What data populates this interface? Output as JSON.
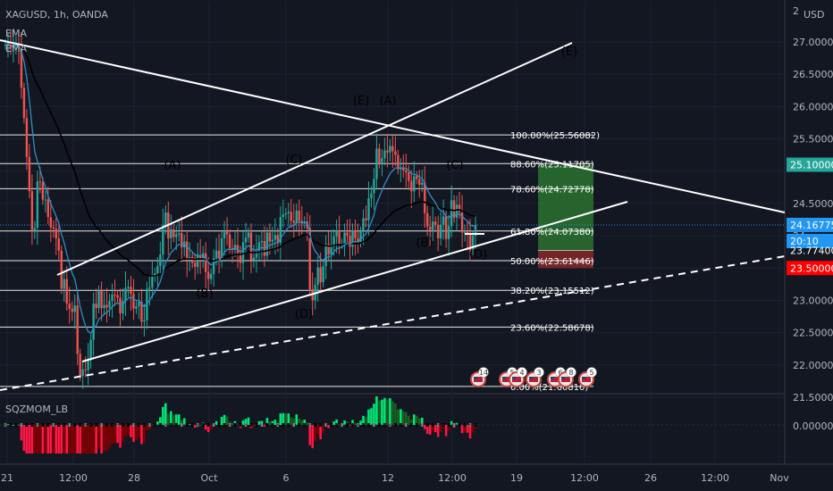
{
  "header": {
    "symbol": "XAGUSD, 1h, OANDA",
    "indicators": [
      "EMA",
      "EMA"
    ],
    "currency": "USD"
  },
  "oscillator": {
    "name": "SQZMOM_LB",
    "zero_label": "0.00000"
  },
  "colors": {
    "background": "#131722",
    "grid": "#1e2230",
    "text": "#b2b5be",
    "trendline": "#ffffff",
    "ema_fast": "#2a8fc5",
    "ema_slow": "#000000",
    "candle_up": "#26a69a",
    "candle_down": "#ef5350",
    "target_zone": "#2e7d32",
    "stop_zone": "#8b2a2a",
    "price_badge": "#2196f3",
    "target_badge": "#26a69a",
    "stop_badge": "#ff0000",
    "mom_up_strong": "#00e676",
    "mom_up_weak": "#1b5e20",
    "mom_down_strong": "#ff1744",
    "mom_down_weak": "#7f0000"
  },
  "chart_data": {
    "type": "candlestick",
    "symbol": "XAGUSD",
    "timeframe": "1h",
    "ylim": [
      21.35,
      27.25
    ],
    "y_ticks": [
      27.0,
      26.5,
      26.0,
      25.5,
      25.0,
      24.5,
      24.0,
      23.5,
      23.0,
      22.5,
      22.0,
      21.5
    ],
    "y_tick_labels": [
      "27.00000",
      "26.50000",
      "26.00000",
      "25.50000",
      "",
      "24.50000",
      "24",
      "",
      "23.00000",
      "22.50000",
      "22.00000",
      "21.50000"
    ],
    "x_tick_labels": [
      "21",
      "12:00",
      "28",
      "Oct",
      "6",
      "12",
      "12:00",
      "19",
      "12:00",
      "26",
      "12:00",
      "Nov"
    ],
    "price_labels": [
      {
        "label": "25.10000",
        "value": 25.1,
        "kind": "target"
      },
      {
        "label": "24.16775",
        "value": 24.17,
        "kind": "last"
      },
      {
        "label": "20:10",
        "value": 24.0,
        "kind": "countdown"
      },
      {
        "label": "23.77400",
        "value": 23.77,
        "kind": "entry"
      },
      {
        "label": "23.50000",
        "value": 23.5,
        "kind": "stop"
      }
    ],
    "fib_levels": [
      {
        "label": "100.00%(25.56082)",
        "value": 25.56082
      },
      {
        "label": "88.60%(25.11705)",
        "value": 25.11705
      },
      {
        "label": "78.60%(24.72778)",
        "value": 24.72778
      },
      {
        "label": "61.80%(24.07380)",
        "value": 24.0738
      },
      {
        "label": "50.00%(23.61446)",
        "value": 23.61446
      },
      {
        "label": "38.20%(23.15512)",
        "value": 23.15512
      },
      {
        "label": "23.60%(22.58678)",
        "value": 22.58678
      },
      {
        "label": "0.00%(21.66810)",
        "value": 21.6681
      }
    ],
    "wave_labels": [
      {
        "text": "(A)",
        "t": 64,
        "price": 24.95
      },
      {
        "text": "(B)",
        "t": 76,
        "price": 23.28
      },
      {
        "text": "(C)",
        "t": 112,
        "price": 25.0
      },
      {
        "text": "(D)",
        "t": 112,
        "price": 22.48
      },
      {
        "text": "(E)",
        "t": 138,
        "price": 25.98
      },
      {
        "text": "(A)",
        "t": 148,
        "price": 25.98
      },
      {
        "text": "(B)",
        "t": 162,
        "price": 23.84
      },
      {
        "text": "(C)",
        "t": 174,
        "price": 24.95
      },
      {
        "text": "(D)",
        "t": 183,
        "price": 23.6
      },
      {
        "text": "(E)",
        "t": 218,
        "price": 26.95
      }
    ],
    "event_badges": [
      "14",
      "5",
      "4",
      "3",
      "6",
      "8",
      "5"
    ],
    "candles_close": [
      26.96,
      26.99,
      26.91,
      26.95,
      26.98,
      26.92,
      26.29,
      25.82,
      25.22,
      24.69,
      24.09,
      24.12,
      24.84,
      24.83,
      24.56,
      24.56,
      24.29,
      24.13,
      24.11,
      23.96,
      23.77,
      23.18,
      23.33,
      22.95,
      22.87,
      22.82,
      22.92,
      22.17,
      21.83,
      21.93,
      21.92,
      22.08,
      22.39,
      22.95,
      22.88,
      23.15,
      22.88,
      22.93,
      22.89,
      22.99,
      23.09,
      23.08,
      23.04,
      22.8,
      22.99,
      23.19,
      23.21,
      23.1,
      22.87,
      22.91,
      22.98,
      22.67,
      22.69,
      23.18,
      23.2,
      23.37,
      23.42,
      23.53,
      23.71,
      24.16,
      24.36,
      23.96,
      24.1,
      23.98,
      24.02,
      24.04,
      23.82,
      23.91,
      23.62,
      23.67,
      23.58,
      23.52,
      23.69,
      23.64,
      23.73,
      23.44,
      23.33,
      23.41,
      23.65,
      23.77,
      23.65,
      23.96,
      24.06,
      24.02,
      23.81,
      23.78,
      23.86,
      23.73,
      23.58,
      23.9,
      23.97,
      24.05,
      23.62,
      23.66,
      23.76,
      23.9,
      23.92,
      23.69,
      24.05,
      23.91,
      23.94,
      24.01,
      23.89,
      24.29,
      24.33,
      24.35,
      24.37,
      24.23,
      24.2,
      24.39,
      24.23,
      24.19,
      24.22,
      24.12,
      23.17,
      23.0,
      23.24,
      23.51,
      23.28,
      23.53,
      23.87,
      23.71,
      23.83,
      23.99,
      24.08,
      23.88,
      23.88,
      24.05,
      24.0,
      23.83,
      24.08,
      23.96,
      23.9,
      24.06,
      24.27,
      24.24,
      24.58,
      24.66,
      24.88,
      25.35,
      25.12,
      25.2,
      25.32,
      25.29,
      25.39,
      25.31,
      25.25,
      25.03,
      25.06,
      25.01,
      24.98,
      24.85,
      24.69,
      24.92,
      24.88,
      24.79,
      24.82,
      24.35,
      24.14,
      24.09,
      24.22,
      24.17,
      23.96,
      24.17,
      24.3,
      23.95,
      24.15,
      24.55,
      24.28,
      24.48,
      24.37,
      24.05,
      24.06,
      24.03,
      23.78,
      24.0,
      24.17
    ],
    "ema_fast": [
      26.95,
      26.96,
      26.95,
      26.95,
      26.95,
      26.95,
      26.86,
      26.7,
      26.45,
      26.1,
      25.68,
      25.3,
      25.15,
      25.02,
      24.87,
      24.76,
      24.62,
      24.5,
      24.4,
      24.3,
      24.2,
      24.02,
      23.89,
      23.72,
      23.57,
      23.42,
      23.33,
      23.12,
      22.9,
      22.74,
      22.6,
      22.52,
      22.49,
      22.57,
      22.61,
      22.71,
      22.74,
      22.79,
      22.81,
      22.85,
      22.9,
      22.94,
      22.96,
      22.93,
      22.94,
      22.99,
      23.03,
      23.05,
      23.02,
      23.0,
      23.0,
      22.95,
      22.9,
      22.95,
      23.0,
      23.07,
      23.13,
      23.2,
      23.29,
      23.43,
      23.59,
      23.66,
      23.74,
      23.78,
      23.83,
      23.87,
      23.86,
      23.87,
      23.83,
      23.79,
      23.75,
      23.7,
      23.7,
      23.69,
      23.69,
      23.65,
      23.59,
      23.55,
      23.57,
      23.6,
      23.61,
      23.67,
      23.74,
      23.79,
      23.79,
      23.79,
      23.8,
      23.79,
      23.75,
      23.78,
      23.81,
      23.85,
      23.81,
      23.78,
      23.78,
      23.8,
      23.82,
      23.8,
      23.84,
      23.85,
      23.87,
      23.89,
      23.89,
      23.96,
      24.02,
      24.08,
      24.13,
      24.15,
      24.16,
      24.2,
      24.21,
      24.21,
      24.21,
      24.2,
      24.03,
      23.85,
      23.76,
      23.71,
      23.64,
      23.62,
      23.66,
      23.67,
      23.69,
      23.75,
      23.8,
      23.81,
      23.82,
      23.86,
      23.88,
      23.87,
      23.9,
      23.91,
      23.91,
      23.94,
      23.99,
      24.03,
      24.12,
      24.21,
      24.32,
      24.5,
      24.6,
      24.7,
      24.8,
      24.88,
      24.96,
      25.01,
      25.05,
      25.05,
      25.05,
      25.05,
      25.04,
      25.01,
      24.96,
      24.95,
      24.94,
      24.91,
      24.89,
      24.81,
      24.71,
      24.63,
      24.57,
      24.51,
      24.43,
      24.39,
      24.37,
      24.3,
      24.28,
      24.32,
      24.31,
      24.33,
      24.34,
      24.3,
      24.26,
      24.23,
      24.17,
      24.15,
      24.15
    ],
    "ema_slow": [
      26.95,
      26.96,
      26.96,
      26.95,
      26.96,
      26.95,
      26.91,
      26.86,
      26.78,
      26.67,
      26.54,
      26.42,
      26.34,
      26.26,
      26.17,
      26.08,
      25.99,
      25.9,
      25.82,
      25.73,
      25.64,
      25.53,
      25.43,
      25.31,
      25.2,
      25.09,
      24.99,
      24.86,
      24.71,
      24.58,
      24.46,
      24.35,
      24.26,
      24.2,
      24.14,
      24.1,
      24.04,
      23.98,
      23.92,
      23.88,
      23.84,
      23.8,
      23.76,
      23.71,
      23.67,
      23.65,
      23.62,
      23.59,
      23.55,
      23.52,
      23.49,
      23.44,
      23.4,
      23.39,
      23.38,
      23.38,
      23.38,
      23.39,
      23.4,
      23.44,
      23.49,
      23.52,
      23.55,
      23.57,
      23.6,
      23.62,
      23.63,
      23.64,
      23.64,
      23.64,
      23.64,
      23.63,
      23.64,
      23.64,
      23.64,
      23.63,
      23.62,
      23.61,
      23.61,
      23.62,
      23.62,
      23.64,
      23.66,
      23.68,
      23.69,
      23.7,
      23.71,
      23.71,
      23.71,
      23.72,
      23.73,
      23.75,
      23.74,
      23.74,
      23.74,
      23.75,
      23.76,
      23.76,
      23.77,
      23.78,
      23.79,
      23.8,
      23.81,
      23.83,
      23.86,
      23.89,
      23.91,
      23.93,
      23.95,
      23.97,
      23.98,
      24.0,
      24.01,
      24.02,
      23.98,
      23.93,
      23.9,
      23.89,
      23.86,
      23.84,
      23.85,
      23.84,
      23.84,
      23.85,
      23.86,
      23.86,
      23.86,
      23.87,
      23.87,
      23.87,
      23.88,
      23.88,
      23.88,
      23.89,
      23.91,
      23.92,
      23.96,
      23.99,
      24.03,
      24.1,
      24.14,
      24.19,
      24.24,
      24.28,
      24.32,
      24.36,
      24.39,
      24.41,
      24.43,
      24.45,
      24.47,
      24.48,
      24.48,
      24.5,
      24.51,
      24.52,
      24.53,
      24.52,
      24.5,
      24.48,
      24.47,
      24.46,
      24.44,
      24.43,
      24.42,
      24.4,
      24.39,
      24.4,
      24.39,
      24.4,
      24.4,
      24.38,
      24.36,
      24.34,
      24.32,
      24.31,
      24.3
    ]
  }
}
